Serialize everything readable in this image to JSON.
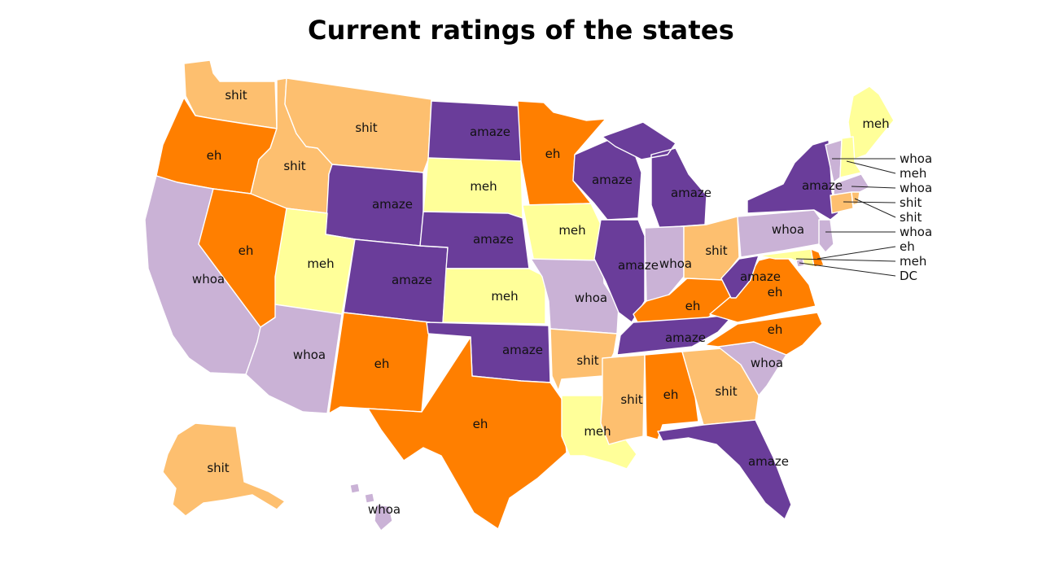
{
  "title": "Current ratings of the states",
  "colors": {
    "amaze": "#6a3d9a",
    "whoa": "#cab2d6",
    "eh": "#ff7f00",
    "shit": "#fdbf6f",
    "meh": "#ffff99"
  },
  "states": [
    {
      "id": "WA",
      "rating": "shit"
    },
    {
      "id": "OR",
      "rating": "eh"
    },
    {
      "id": "CA",
      "rating": "whoa"
    },
    {
      "id": "ID",
      "rating": "shit"
    },
    {
      "id": "NV",
      "rating": "eh"
    },
    {
      "id": "MT",
      "rating": "shit"
    },
    {
      "id": "WY",
      "rating": "amaze"
    },
    {
      "id": "UT",
      "rating": "meh"
    },
    {
      "id": "AZ",
      "rating": "whoa"
    },
    {
      "id": "CO",
      "rating": "amaze"
    },
    {
      "id": "NM",
      "rating": "eh"
    },
    {
      "id": "ND",
      "rating": "amaze"
    },
    {
      "id": "SD",
      "rating": "meh"
    },
    {
      "id": "NE",
      "rating": "amaze"
    },
    {
      "id": "KS",
      "rating": "meh"
    },
    {
      "id": "OK",
      "rating": "amaze"
    },
    {
      "id": "TX",
      "rating": "eh"
    },
    {
      "id": "MN",
      "rating": "eh"
    },
    {
      "id": "IA",
      "rating": "meh"
    },
    {
      "id": "MO",
      "rating": "whoa"
    },
    {
      "id": "AR",
      "rating": "shit"
    },
    {
      "id": "LA",
      "rating": "meh"
    },
    {
      "id": "WI",
      "rating": "amaze"
    },
    {
      "id": "IL",
      "rating": "amaze"
    },
    {
      "id": "MI",
      "rating": "amaze"
    },
    {
      "id": "IN",
      "rating": "whoa"
    },
    {
      "id": "OH",
      "rating": "shit"
    },
    {
      "id": "KY",
      "rating": "eh"
    },
    {
      "id": "TN",
      "rating": "amaze"
    },
    {
      "id": "MS",
      "rating": "shit"
    },
    {
      "id": "AL",
      "rating": "eh"
    },
    {
      "id": "GA",
      "rating": "shit"
    },
    {
      "id": "FL",
      "rating": "amaze"
    },
    {
      "id": "SC",
      "rating": "whoa"
    },
    {
      "id": "NC",
      "rating": "eh"
    },
    {
      "id": "VA",
      "rating": "eh"
    },
    {
      "id": "WV",
      "rating": "amaze"
    },
    {
      "id": "PA",
      "rating": "whoa"
    },
    {
      "id": "NY",
      "rating": "amaze"
    },
    {
      "id": "ME",
      "rating": "meh"
    },
    {
      "id": "VT",
      "rating": "whoa"
    },
    {
      "id": "NH",
      "rating": "meh"
    },
    {
      "id": "MA",
      "rating": "whoa"
    },
    {
      "id": "CT",
      "rating": "shit"
    },
    {
      "id": "RI",
      "rating": "shit"
    },
    {
      "id": "NJ",
      "rating": "whoa"
    },
    {
      "id": "DE",
      "rating": "eh"
    },
    {
      "id": "MD",
      "rating": "meh"
    },
    {
      "id": "DC",
      "rating": "whoa"
    },
    {
      "id": "AK",
      "rating": "shit"
    },
    {
      "id": "HI",
      "rating": "whoa"
    }
  ],
  "callouts": [
    "whoa",
    "meh",
    "whoa",
    "shit",
    "shit",
    "whoa",
    "eh",
    "meh",
    "DC"
  ]
}
